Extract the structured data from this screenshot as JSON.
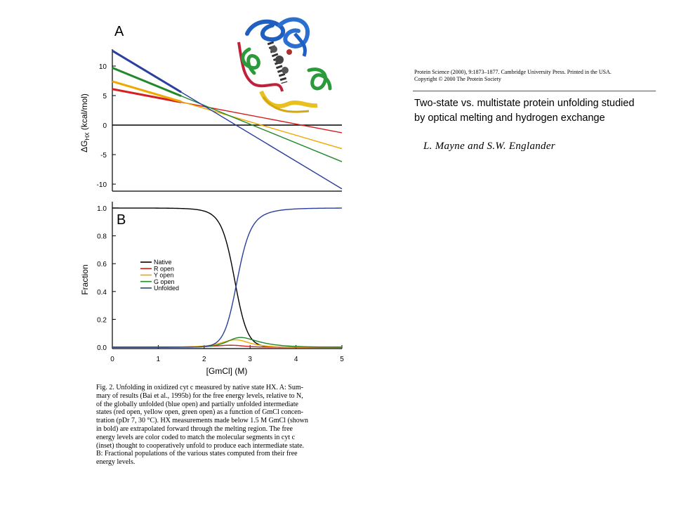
{
  "journal": {
    "line1": "Protein Science (2000), 9:1873–1877. Cambridge University Press. Printed in the USA.",
    "line2": "Copyright © 2000 The Protein Society"
  },
  "paper": {
    "title_line1": "Two-state vs. multistate protein unfolding studied",
    "title_line2": "by optical melting and hydrogen exchange",
    "authors": "L. Mayne and S.W. Englander"
  },
  "figure": {
    "caption_lines": [
      "Fig. 2.  Unfolding in oxidized cyt c measured by native state HX. A: Sum-",
      "mary of results (Bai et al., 1995b) for the free energy levels, relative to N,",
      "of the globally unfolded (blue open) and partially unfolded intermediate",
      "states (red open, yellow open, green open) as a function of GmCl concen-",
      "tration (pDr 7, 30 °C). HX measurements made below 1.5 M GmCl (shown",
      "in bold) are extrapolated forward through the melting region. The free",
      "energy levels are color coded to match the molecular segments in cyt c",
      "(inset) thought to cooperatively unfold to produce each intermediate state.",
      "B: Fractional populations of the various states computed from their free",
      "energy levels."
    ]
  },
  "chart_data": [
    {
      "type": "line",
      "panel_label": "A",
      "ylabel": "ΔG_HX (kcal/mol)",
      "xlabel": "",
      "xlim": [
        0,
        5
      ],
      "ylim": [
        -10.5,
        12.5
      ],
      "y_ticks": [
        -10,
        -5,
        0,
        5,
        10
      ],
      "series": [
        {
          "color": "#000000",
          "x": [
            0,
            5
          ],
          "y": [
            0,
            0
          ]
        },
        {
          "color": "#d42020",
          "x": [
            0,
            5
          ],
          "y": [
            6.1,
            -1.3
          ]
        },
        {
          "color": "#f0a800",
          "x": [
            0,
            5
          ],
          "y": [
            7.4,
            -4.0
          ]
        },
        {
          "color": "#21882b",
          "x": [
            0,
            5
          ],
          "y": [
            9.7,
            -6.2
          ]
        },
        {
          "color": "#2b3f9c",
          "x": [
            0,
            5
          ],
          "y": [
            12.6,
            -10.8
          ]
        }
      ],
      "inset": "cyt c ribbon structure (red, yellow, green, blue segments)"
    },
    {
      "type": "line",
      "panel_label": "B",
      "xlabel": "[GmCl] (M)",
      "ylabel": "Fraction",
      "xlim": [
        0,
        5
      ],
      "ylim": [
        -0.01,
        1.03
      ],
      "x_ticks": [
        0,
        1,
        2,
        3,
        4,
        5
      ],
      "y_ticks": [
        0.0,
        0.2,
        0.4,
        0.6,
        0.8,
        1.0
      ],
      "legend_position": "middle-left",
      "series": [
        {
          "name": "Native",
          "color": "#000000"
        },
        {
          "name": "R open",
          "color": "#d42020"
        },
        {
          "name": "Y open",
          "color": "#f0a800"
        },
        {
          "name": "G open",
          "color": "#21882b"
        },
        {
          "name": "Unfolded",
          "color": "#2b3f9c"
        }
      ]
    }
  ]
}
